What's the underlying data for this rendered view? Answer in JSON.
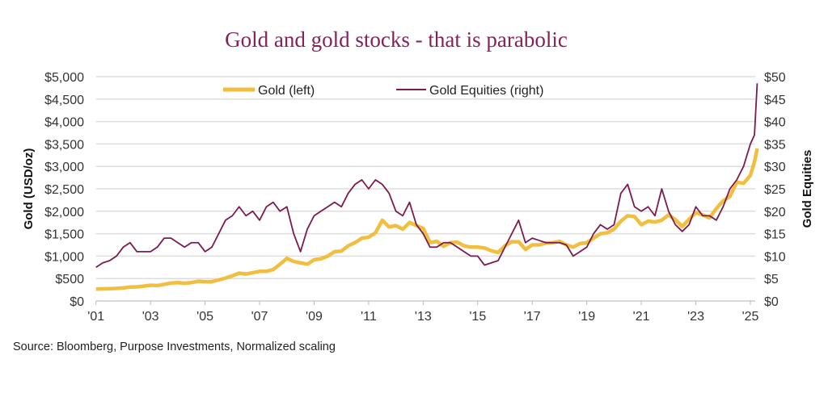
{
  "chart_data": {
    "type": "line",
    "title": "Gold and gold stocks - that is parabolic",
    "source": "Source: Bloomberg, Purpose Investments, Normalized scaling",
    "ylabel_left": "Gold (USD/oz)",
    "ylabel_right": "Gold Equities",
    "ylim_left": [
      0,
      5000
    ],
    "ylim_right": [
      0,
      50
    ],
    "xlim": [
      2001,
      2025.3
    ],
    "grid": true,
    "legend_position": "top-center",
    "x_ticks": [
      "'01",
      "'03",
      "'05",
      "'07",
      "'09",
      "'11",
      "'13",
      "'15",
      "'17",
      "'19",
      "'21",
      "'23",
      "'25"
    ],
    "y_ticks_left": [
      "$0",
      "$500",
      "$1,000",
      "$1,500",
      "$2,000",
      "$2,500",
      "$3,000",
      "$3,500",
      "$4,000",
      "$4,500",
      "$5,000"
    ],
    "y_ticks_right": [
      "$0",
      "$5",
      "$10",
      "$15",
      "$20",
      "$25",
      "$30",
      "$35",
      "$40",
      "$45",
      "$50"
    ],
    "colors": {
      "gold": "#f2be40",
      "equities": "#7b1b50",
      "grid": "#dddddd",
      "title": "#84215c"
    },
    "series": [
      {
        "name": "Gold (left)",
        "axis": "left",
        "values": [
          265,
          270,
          275,
          280,
          290,
          310,
          315,
          330,
          350,
          345,
          370,
          400,
          410,
          395,
          410,
          440,
          430,
          430,
          470,
          510,
          560,
          620,
          600,
          630,
          660,
          660,
          700,
          820,
          950,
          880,
          850,
          820,
          920,
          940,
          1000,
          1100,
          1110,
          1230,
          1300,
          1400,
          1420,
          1520,
          1800,
          1650,
          1680,
          1600,
          1750,
          1680,
          1620,
          1300,
          1330,
          1220,
          1300,
          1310,
          1230,
          1200,
          1200,
          1180,
          1120,
          1080,
          1230,
          1320,
          1320,
          1150,
          1250,
          1250,
          1290,
          1300,
          1330,
          1250,
          1200,
          1280,
          1300,
          1400,
          1500,
          1520,
          1600,
          1780,
          1900,
          1880,
          1700,
          1780,
          1760,
          1800,
          1920,
          1810,
          1660,
          1820,
          1970,
          1920,
          1850,
          2060,
          2230,
          2330,
          2650,
          2620,
          2800,
          3100,
          3400
        ]
      },
      {
        "name": "Gold Equities (right)",
        "axis": "right",
        "values": [
          7.5,
          8.5,
          9,
          10,
          12,
          13,
          11,
          11,
          11,
          12,
          14,
          14,
          13,
          12,
          13,
          13,
          11,
          12,
          15,
          18,
          19,
          21,
          19,
          20,
          18,
          21,
          22,
          20,
          21,
          15,
          11,
          16,
          19,
          20,
          21,
          22,
          21,
          24,
          26,
          27,
          25,
          27,
          26,
          24,
          20,
          19,
          22,
          17,
          15,
          12,
          12,
          13,
          13,
          12,
          11,
          10,
          10,
          8,
          8.5,
          9,
          12,
          15,
          18,
          13,
          14,
          13.5,
          13,
          13,
          13,
          12.5,
          10,
          11,
          12,
          15,
          17,
          16,
          17,
          24,
          26,
          21,
          20,
          21,
          19,
          25,
          20,
          17,
          15.5,
          17,
          21,
          19,
          19,
          18,
          21,
          25,
          27,
          30,
          35,
          37,
          48.5
        ]
      }
    ],
    "x": "quarterly from 2001 Q1 to 2025 Q1, then 2025.15, 2025.25"
  }
}
